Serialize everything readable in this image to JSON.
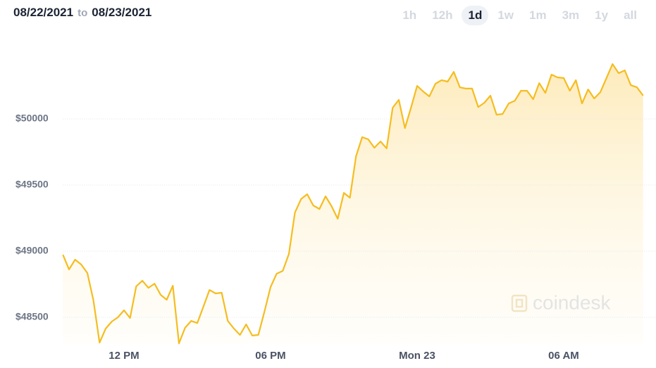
{
  "header": {
    "date_from": "08/22/2021",
    "separator": "to",
    "date_to": "08/23/2021",
    "ranges": [
      "1h",
      "12h",
      "1d",
      "1w",
      "1m",
      "3m",
      "1y",
      "all"
    ],
    "active_range": "1d"
  },
  "watermark": "coindesk",
  "chart_data": {
    "type": "area",
    "color": "#f5bd1f",
    "categories": [
      null,
      null,
      null,
      null,
      null,
      null,
      null,
      null,
      null,
      null,
      "12 PM",
      null,
      null,
      null,
      null,
      null,
      null,
      null,
      null,
      null,
      null,
      null,
      null,
      null,
      null,
      null,
      null,
      null,
      null,
      null,
      null,
      null,
      null,
      null,
      "06 PM",
      null,
      null,
      null,
      null,
      null,
      null,
      null,
      null,
      null,
      null,
      null,
      null,
      null,
      null,
      null,
      null,
      null,
      null,
      null,
      null,
      null,
      null,
      null,
      "Mon 23",
      null,
      null,
      null,
      null,
      null,
      null,
      null,
      null,
      null,
      null,
      null,
      null,
      null,
      null,
      null,
      null,
      null,
      null,
      null,
      null,
      null,
      null,
      null,
      "06 AM",
      null,
      null,
      null,
      null,
      null,
      null,
      null,
      null,
      null,
      null,
      null,
      null,
      null
    ],
    "values": [
      48973,
      48862,
      48936,
      48899,
      48835,
      48628,
      48309,
      48415,
      48468,
      48500,
      48553,
      48495,
      48734,
      48777,
      48723,
      48755,
      48670,
      48633,
      48739,
      48303,
      48420,
      48473,
      48457,
      48580,
      48707,
      48681,
      48686,
      48473,
      48415,
      48367,
      48447,
      48362,
      48367,
      48543,
      48729,
      48830,
      48851,
      48979,
      49293,
      49394,
      49431,
      49346,
      49319,
      49415,
      49340,
      49245,
      49441,
      49404,
      49718,
      49862,
      49846,
      49782,
      49830,
      49777,
      50085,
      50144,
      49931,
      50085,
      50250,
      50207,
      50170,
      50266,
      50293,
      50282,
      50356,
      50239,
      50229,
      50229,
      50090,
      50122,
      50176,
      50032,
      50037,
      50117,
      50138,
      50213,
      50213,
      50149,
      50271,
      50197,
      50335,
      50314,
      50309,
      50213,
      50293,
      50117,
      50223,
      50154,
      50202,
      50309,
      50415,
      50346,
      50367,
      50255,
      50239,
      50176
    ],
    "ylim": [
      48300,
      50700
    ],
    "yticks": [
      {
        "value": 48500,
        "label": "$48500"
      },
      {
        "value": 49000,
        "label": "$49000"
      },
      {
        "value": 49500,
        "label": "$49500"
      },
      {
        "value": 50000,
        "label": "$50000"
      }
    ],
    "grid": true
  }
}
